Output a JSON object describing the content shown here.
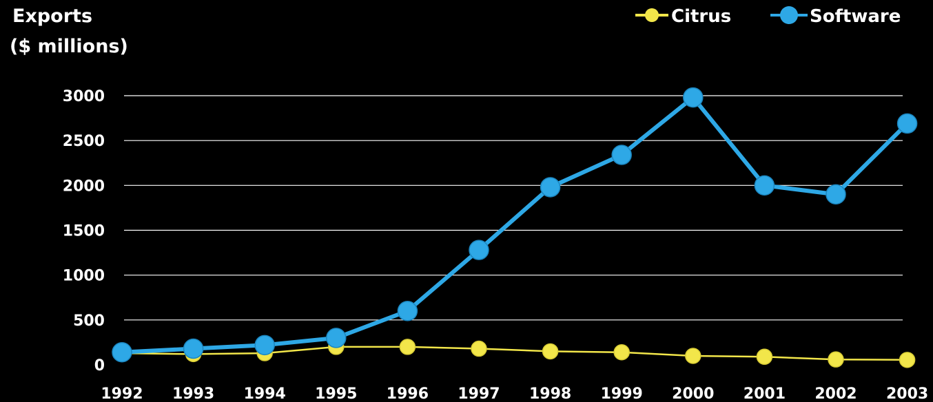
{
  "colors": {
    "background": "#000000",
    "text": "#ffffff",
    "grid": "#ffffff",
    "citrus": "#f2e64a",
    "software": "#2ea8e6"
  },
  "chart_data": {
    "type": "line",
    "title": "",
    "ylabel_lines": [
      "Exports",
      "($ millions)"
    ],
    "xlabel": "",
    "x": [
      "1992",
      "1993",
      "1994",
      "1995",
      "1996",
      "1997",
      "1998",
      "1999",
      "2000",
      "2001",
      "2002",
      "2003"
    ],
    "ylim": [
      0,
      3000
    ],
    "yticks": [
      0,
      500,
      1000,
      1500,
      2000,
      2500,
      3000
    ],
    "grid": true,
    "legend_position": "top-right",
    "series": [
      {
        "name": "Citrus",
        "color": "#f2e64a",
        "values": [
          130,
          120,
          130,
          200,
          200,
          180,
          150,
          140,
          100,
          90,
          60,
          55
        ]
      },
      {
        "name": "Software",
        "color": "#2ea8e6",
        "values": [
          140,
          180,
          220,
          300,
          600,
          1280,
          1980,
          2340,
          2980,
          2000,
          1900,
          2690
        ]
      }
    ]
  }
}
